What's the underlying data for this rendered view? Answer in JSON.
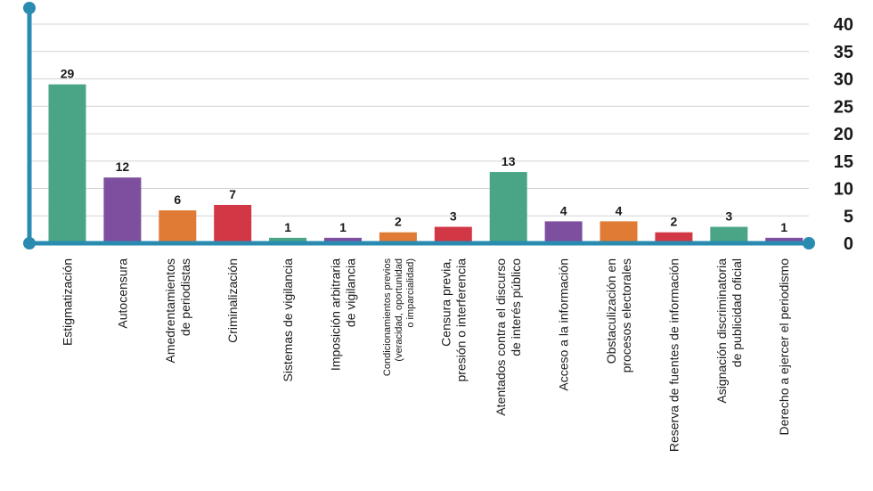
{
  "chart_data": {
    "type": "bar",
    "categories": [
      [
        "Estigmatización"
      ],
      [
        "Autocensura"
      ],
      [
        "Amedrentamientos",
        "de periodistas"
      ],
      [
        "Criminalización"
      ],
      [
        "Sistemas de vigilancia"
      ],
      [
        "Imposición arbitraria",
        "de vigilancia"
      ],
      [
        "Condicionamientos previos",
        "(veracidad, oportunidad",
        "o imparcialidad)"
      ],
      [
        "Censura previa,",
        "presión o interferencia"
      ],
      [
        "Atentados contra el discurso",
        "de interés público"
      ],
      [
        "Acceso a la información"
      ],
      [
        "Obstaculización en",
        "procesos electorales"
      ],
      [
        "Reserva de fuentes de información"
      ],
      [
        "Asignación discriminatoria",
        "de publicidad oficial"
      ],
      [
        "Derecho a ejercer el periodismo"
      ]
    ],
    "values": [
      29,
      12,
      6,
      7,
      1,
      1,
      2,
      3,
      13,
      4,
      4,
      2,
      3,
      1
    ],
    "colors": [
      "#4aa586",
      "#7d4f9e",
      "#df7b35",
      "#d23745",
      "#4aa586",
      "#7d4f9e",
      "#df7b35",
      "#d23745",
      "#4aa586",
      "#7d4f9e",
      "#df7b35",
      "#d23745",
      "#4aa586",
      "#7d4f9e"
    ],
    "ylim": [
      0,
      40
    ],
    "yticks": [
      0,
      5,
      10,
      15,
      20,
      25,
      30,
      35,
      40
    ],
    "grid": true,
    "axis_color": "#2a8bb0",
    "grid_color": "#d4d4d4",
    "title": "",
    "xlabel": "",
    "ylabel": ""
  }
}
